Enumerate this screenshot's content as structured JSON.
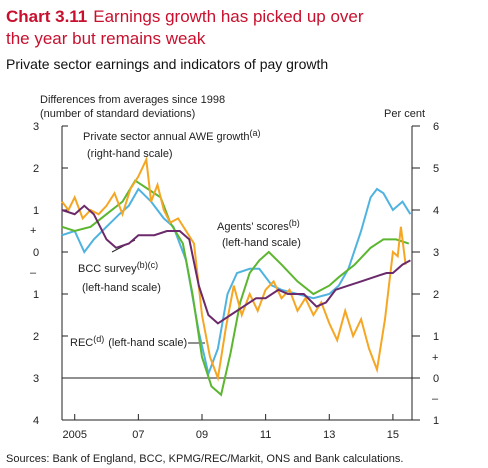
{
  "chart_data": {
    "type": "line",
    "title_prefix": "Chart 3.11",
    "title": "Earnings growth has picked up over the year but remains weak",
    "subtitle": "Private sector earnings and indicators of pay growth",
    "y_label": [
      "Differences from averages since 1998",
      "(number of standard deviations)"
    ],
    "y2_label": "Per cent",
    "sign_labels": {
      "plus": "+",
      "minus": "–"
    },
    "source": "Sources: Bank of England, BCC, KPMG/REC/Markit, ONS and Bank calculations.",
    "xlim": [
      2004.6,
      2015.6
    ],
    "xticks": [
      {
        "value": 2005,
        "label": "2005"
      },
      {
        "value": 2007,
        "label": "07"
      },
      {
        "value": 2009,
        "label": "09"
      },
      {
        "value": 2011,
        "label": "11"
      },
      {
        "value": 2013,
        "label": "13"
      },
      {
        "value": 2015,
        "label": "15"
      }
    ],
    "ylim": [
      -4,
      3
    ],
    "yticks": [
      {
        "value": 3,
        "label": "3"
      },
      {
        "value": 2,
        "label": "2"
      },
      {
        "value": 1,
        "label": "1"
      },
      {
        "value": 0,
        "label": "0"
      },
      {
        "value": -1,
        "label": "1"
      },
      {
        "value": -2,
        "label": "2"
      },
      {
        "value": -3,
        "label": "3"
      },
      {
        "value": -4,
        "label": "4"
      }
    ],
    "y2lim": [
      -1,
      6
    ],
    "y2ticks": [
      6,
      5,
      4,
      3,
      2,
      1,
      0,
      {
        "value": -1,
        "label": "1"
      }
    ],
    "series": [
      {
        "name": "Private sector annual AWE growth",
        "note": "(a)",
        "scale_label": "(right-hand scale)",
        "color": "#f5a623",
        "axis": "y2",
        "x": [
          2004.6,
          2004.8,
          2005.0,
          2005.25,
          2005.5,
          2005.75,
          2006,
          2006.25,
          2006.5,
          2006.75,
          2007.0,
          2007.25,
          2007.4,
          2007.6,
          2007.8,
          2008,
          2008.25,
          2008.5,
          2008.75,
          2009.0,
          2009.25,
          2009.5,
          2009.75,
          2010.0,
          2010.25,
          2010.5,
          2010.75,
          2011,
          2011.25,
          2011.5,
          2011.75,
          2012,
          2012.25,
          2012.5,
          2012.75,
          2013,
          2013.25,
          2013.5,
          2013.75,
          2014,
          2014.25,
          2014.5,
          2014.75,
          2015,
          2015.15,
          2015.25,
          2015.4
        ],
        "values": [
          4.2,
          4.0,
          4.3,
          3.8,
          4.0,
          3.9,
          4.1,
          4.4,
          3.9,
          4.5,
          4.8,
          5.2,
          4.2,
          4.6,
          4.0,
          3.7,
          3.8,
          3.5,
          3.2,
          1.5,
          0.5,
          0.0,
          1.2,
          2.2,
          1.5,
          2.0,
          1.6,
          2.1,
          2.3,
          1.9,
          2.1,
          1.6,
          1.9,
          1.5,
          1.8,
          1.3,
          0.9,
          1.6,
          1.0,
          1.4,
          0.7,
          0.2,
          1.4,
          3.0,
          2.9,
          3.6,
          2.7
        ]
      },
      {
        "name": "Agents’ scores",
        "note": "(b)",
        "scale_label": "(left-hand scale)",
        "color": "#5cb630",
        "axis": "y",
        "x": [
          2004.6,
          2005,
          2005.5,
          2006,
          2006.5,
          2006.9,
          2007.3,
          2007.7,
          2008,
          2008.4,
          2008.7,
          2009,
          2009.3,
          2009.6,
          2009.9,
          2010.2,
          2010.5,
          2010.8,
          2011.1,
          2011.5,
          2012,
          2012.5,
          2013,
          2013.3,
          2013.8,
          2014.3,
          2014.7,
          2015.1,
          2015.5
        ],
        "values": [
          0.6,
          0.5,
          0.6,
          0.9,
          1.2,
          1.7,
          1.5,
          1.3,
          0.7,
          0.2,
          -1.0,
          -2.5,
          -3.2,
          -3.4,
          -2.4,
          -1.2,
          -0.5,
          -0.2,
          0.0,
          -0.3,
          -0.7,
          -1.0,
          -0.8,
          -0.6,
          -0.3,
          0.1,
          0.3,
          0.3,
          0.2
        ]
      },
      {
        "name": "BCC survey",
        "note": "(b)(c)",
        "scale_label": "(left-hand scale)",
        "color": "#6b2a6b",
        "axis": "y",
        "x": [
          2004.6,
          2005.0,
          2005.3,
          2005.6,
          2006,
          2006.3,
          2006.7,
          2007,
          2007.5,
          2007.9,
          2008.3,
          2008.6,
          2008.9,
          2009.2,
          2009.5,
          2009.9,
          2010.3,
          2010.7,
          2011,
          2011.4,
          2011.7,
          2012.2,
          2012.6,
          2012.9,
          2013.2,
          2013.6,
          2014,
          2014.4,
          2014.8,
          2015,
          2015.3,
          2015.55
        ],
        "values": [
          1.0,
          0.9,
          1.1,
          0.9,
          0.3,
          0.1,
          0.2,
          0.4,
          0.4,
          0.5,
          0.5,
          0.3,
          -0.8,
          -1.5,
          -1.7,
          -1.5,
          -1.3,
          -1.1,
          -1.1,
          -0.9,
          -1.0,
          -1.0,
          -1.3,
          -1.2,
          -0.9,
          -0.8,
          -0.7,
          -0.6,
          -0.5,
          -0.5,
          -0.3,
          -0.2
        ]
      },
      {
        "name": "REC",
        "note": "(d)",
        "scale_label": "(left-hand scale)",
        "color": "#4fb3e0",
        "axis": "y",
        "x": [
          2004.6,
          2005,
          2005.3,
          2005.6,
          2006,
          2006.4,
          2006.7,
          2007,
          2007.4,
          2007.8,
          2008.1,
          2008.5,
          2008.9,
          2009.2,
          2009.5,
          2009.8,
          2010.1,
          2010.5,
          2010.8,
          2011.2,
          2011.5,
          2012,
          2012.5,
          2013,
          2013.3,
          2013.6,
          2014,
          2014.3,
          2014.5,
          2014.7,
          2015,
          2015.3,
          2015.55
        ],
        "values": [
          0.4,
          0.5,
          0.0,
          0.3,
          0.6,
          0.9,
          1.1,
          1.5,
          1.2,
          0.8,
          0.6,
          -0.2,
          -1.9,
          -2.9,
          -2.3,
          -1.0,
          -0.5,
          -0.4,
          -0.4,
          -0.8,
          -0.9,
          -1.0,
          -1.1,
          -1.0,
          -0.8,
          -0.4,
          0.5,
          1.3,
          1.5,
          1.4,
          1.0,
          1.2,
          0.9
        ]
      }
    ]
  }
}
